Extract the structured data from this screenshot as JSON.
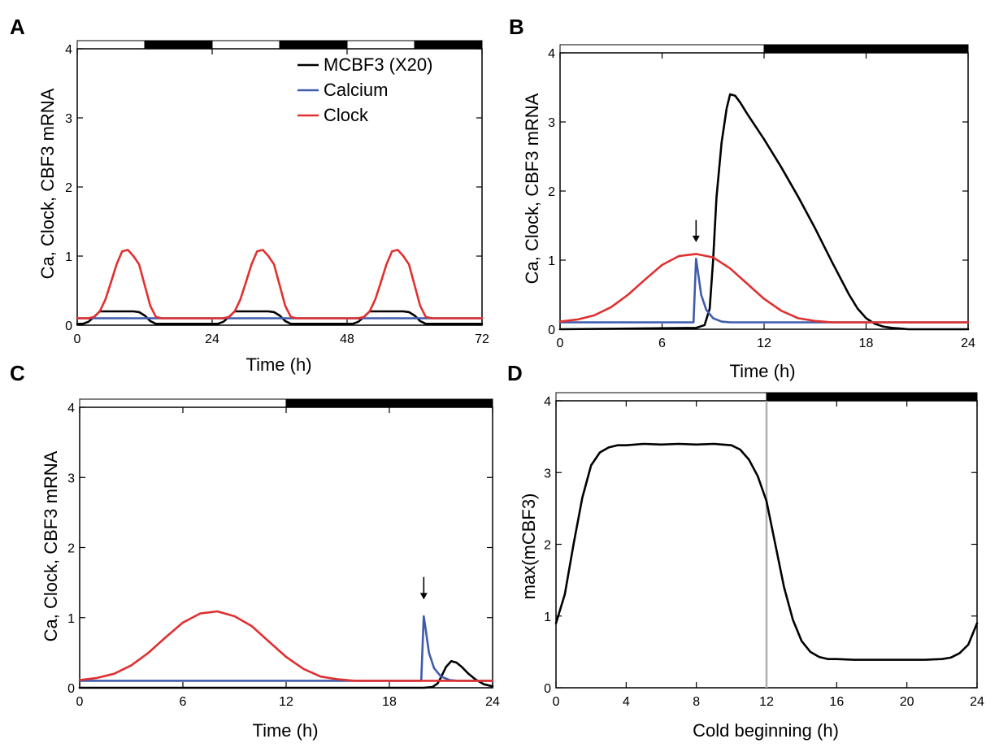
{
  "chart_data": [
    {
      "panel": "A",
      "type": "line",
      "xlabel": "Time (h)",
      "ylabel": "Ca, Clock, CBF3 mRNA",
      "xlim": [
        0,
        72
      ],
      "ylim": [
        0,
        4
      ],
      "xticks": [
        0,
        24,
        48,
        72
      ],
      "yticks": [
        0,
        1,
        2,
        3,
        4
      ],
      "light_dark_bar": [
        {
          "start": 0,
          "end": 12,
          "state": "light"
        },
        {
          "start": 12,
          "end": 24,
          "state": "dark"
        },
        {
          "start": 24,
          "end": 36,
          "state": "light"
        },
        {
          "start": 36,
          "end": 48,
          "state": "dark"
        },
        {
          "start": 48,
          "end": 60,
          "state": "light"
        },
        {
          "start": 60,
          "end": 72,
          "state": "dark"
        }
      ],
      "legend": {
        "placement": "top-right",
        "entries": [
          {
            "label": "MCBF3 (X20)",
            "color": "#000000"
          },
          {
            "label": "Calcium",
            "color": "#3f5bab"
          },
          {
            "label": "Clock",
            "color": "#e03030"
          }
        ]
      },
      "series": [
        {
          "name": "MCBF3 (X20)",
          "color": "#000000",
          "x": [
            0,
            1,
            2,
            3,
            4,
            10,
            11,
            12,
            13,
            14,
            23,
            24,
            25,
            26,
            27,
            28,
            34,
            35,
            36,
            37,
            38,
            47,
            48,
            49,
            50,
            51,
            52,
            58,
            59,
            60,
            61,
            62,
            72
          ],
          "y": [
            0.02,
            0.02,
            0.05,
            0.12,
            0.2,
            0.2,
            0.19,
            0.14,
            0.06,
            0.02,
            0.02,
            0.02,
            0.02,
            0.05,
            0.12,
            0.2,
            0.2,
            0.19,
            0.14,
            0.06,
            0.02,
            0.02,
            0.02,
            0.02,
            0.05,
            0.12,
            0.2,
            0.2,
            0.19,
            0.14,
            0.06,
            0.02,
            0.02
          ]
        },
        {
          "name": "Calcium",
          "color": "#3f5bab",
          "x": [
            0,
            72
          ],
          "y": [
            0.1,
            0.1
          ]
        },
        {
          "name": "Clock",
          "color": "#e03030",
          "x": [
            0,
            2,
            3,
            4,
            5,
            6,
            7,
            8,
            9,
            10,
            11,
            12,
            13,
            14,
            15,
            26,
            27,
            28,
            29,
            30,
            31,
            32,
            33,
            34,
            35,
            36,
            37,
            38,
            39,
            50,
            51,
            52,
            53,
            54,
            55,
            56,
            57,
            58,
            59,
            60,
            61,
            62,
            63,
            72
          ],
          "y": [
            0.1,
            0.1,
            0.12,
            0.2,
            0.37,
            0.62,
            0.88,
            1.07,
            1.09,
            1.0,
            0.88,
            0.58,
            0.28,
            0.12,
            0.1,
            0.1,
            0.12,
            0.2,
            0.37,
            0.62,
            0.88,
            1.07,
            1.09,
            1.0,
            0.88,
            0.58,
            0.28,
            0.12,
            0.1,
            0.1,
            0.12,
            0.2,
            0.37,
            0.62,
            0.88,
            1.07,
            1.09,
            1.0,
            0.88,
            0.58,
            0.28,
            0.12,
            0.1,
            0.1
          ]
        }
      ]
    },
    {
      "panel": "B",
      "type": "line",
      "xlabel": "Time (h)",
      "ylabel": "Ca, Clock, CBF3 mRNA",
      "xlim": [
        0,
        24
      ],
      "ylim": [
        0,
        4
      ],
      "xticks": [
        0,
        6,
        12,
        18,
        24
      ],
      "yticks": [
        0,
        1,
        2,
        3,
        4
      ],
      "light_dark_bar": [
        {
          "start": 0,
          "end": 12,
          "state": "light"
        },
        {
          "start": 12,
          "end": 24,
          "state": "dark"
        }
      ],
      "annotations": [
        {
          "type": "arrow-down",
          "x": 8,
          "y": 1.2
        }
      ],
      "series": [
        {
          "name": "MCBF3 (X20)",
          "color": "#000000",
          "x": [
            0,
            8,
            8.5,
            8.8,
            9,
            9.2,
            9.5,
            9.8,
            10,
            10.3,
            10.6,
            11,
            12,
            13,
            14,
            15,
            16,
            17,
            17.5,
            18,
            18.5,
            19,
            19.5,
            20,
            20.5,
            24
          ],
          "y": [
            0,
            0.02,
            0.06,
            0.3,
            1.0,
            1.9,
            2.7,
            3.2,
            3.4,
            3.38,
            3.28,
            3.12,
            2.75,
            2.35,
            1.92,
            1.46,
            0.97,
            0.5,
            0.3,
            0.16,
            0.08,
            0.04,
            0.02,
            0.01,
            0,
            0
          ]
        },
        {
          "name": "Calcium",
          "color": "#3f5bab",
          "x": [
            0,
            7.85,
            8,
            8.1,
            8.3,
            8.6,
            9,
            9.5,
            10,
            24
          ],
          "y": [
            0.1,
            0.1,
            1.02,
            0.85,
            0.5,
            0.28,
            0.16,
            0.11,
            0.1,
            0.1
          ]
        },
        {
          "name": "Clock",
          "color": "#e03030",
          "x": [
            0,
            1,
            2,
            3,
            4,
            5,
            6,
            7,
            8,
            9,
            10,
            11,
            12,
            13,
            14,
            15,
            16,
            17,
            24
          ],
          "y": [
            0.11,
            0.14,
            0.2,
            0.32,
            0.5,
            0.72,
            0.93,
            1.06,
            1.09,
            1.04,
            0.88,
            0.66,
            0.44,
            0.27,
            0.16,
            0.12,
            0.1,
            0.1,
            0.1
          ]
        }
      ]
    },
    {
      "panel": "C",
      "type": "line",
      "xlabel": "Time (h)",
      "ylabel": "Ca, Clock, CBF3 mRNA",
      "xlim": [
        0,
        24
      ],
      "ylim": [
        0,
        4
      ],
      "xticks": [
        0,
        6,
        12,
        18,
        24
      ],
      "yticks": [
        0,
        1,
        2,
        3,
        4
      ],
      "light_dark_bar": [
        {
          "start": 0,
          "end": 12,
          "state": "light"
        },
        {
          "start": 12,
          "end": 24,
          "state": "dark"
        }
      ],
      "annotations": [
        {
          "type": "arrow-down",
          "x": 20,
          "y": 1.2
        }
      ],
      "series": [
        {
          "name": "MCBF3 (X20)",
          "color": "#000000",
          "x": [
            0,
            20,
            20.5,
            20.8,
            21,
            21.3,
            21.6,
            21.9,
            22.2,
            22.6,
            23,
            23.5,
            24
          ],
          "y": [
            0,
            0,
            0.01,
            0.06,
            0.15,
            0.3,
            0.38,
            0.36,
            0.3,
            0.2,
            0.12,
            0.05,
            0.02
          ]
        },
        {
          "name": "Calcium",
          "color": "#3f5bab",
          "x": [
            0,
            19.85,
            20,
            20.1,
            20.3,
            20.6,
            21,
            21.5,
            22,
            24
          ],
          "y": [
            0.1,
            0.1,
            1.02,
            0.85,
            0.5,
            0.28,
            0.16,
            0.11,
            0.1,
            0.1
          ]
        },
        {
          "name": "Clock",
          "color": "#e03030",
          "x": [
            0,
            1,
            2,
            3,
            4,
            5,
            6,
            7,
            8,
            9,
            10,
            11,
            12,
            13,
            14,
            15,
            16,
            17,
            24
          ],
          "y": [
            0.11,
            0.14,
            0.2,
            0.32,
            0.5,
            0.72,
            0.93,
            1.06,
            1.09,
            1.02,
            0.88,
            0.66,
            0.44,
            0.27,
            0.16,
            0.12,
            0.1,
            0.1,
            0.1
          ]
        }
      ]
    },
    {
      "panel": "D",
      "type": "line",
      "xlabel": "Cold beginning (h)",
      "ylabel": "max(mCBF3)",
      "xlim": [
        0,
        24
      ],
      "ylim": [
        0,
        4
      ],
      "xticks": [
        0,
        4,
        8,
        12,
        16,
        20,
        24
      ],
      "yticks": [
        0,
        1,
        2,
        3,
        4
      ],
      "light_dark_bar": [
        {
          "start": 0,
          "end": 12,
          "state": "light"
        },
        {
          "start": 12,
          "end": 24,
          "state": "dark"
        }
      ],
      "vline": {
        "x": 12,
        "color": "#b0b0b0"
      },
      "series": [
        {
          "name": "max(mCBF3)",
          "color": "#000000",
          "x": [
            0,
            0.5,
            1,
            1.5,
            2,
            2.5,
            3,
            3.5,
            4,
            5,
            6,
            7,
            8,
            9,
            10,
            10.5,
            11,
            11.5,
            12,
            12.5,
            13,
            13.5,
            14,
            14.5,
            15,
            15.5,
            16,
            17,
            18,
            19,
            20,
            21,
            22,
            22.5,
            23,
            23.5,
            24
          ],
          "y": [
            0.9,
            1.3,
            2.0,
            2.65,
            3.1,
            3.28,
            3.35,
            3.38,
            3.38,
            3.4,
            3.39,
            3.4,
            3.39,
            3.4,
            3.38,
            3.32,
            3.18,
            2.95,
            2.6,
            2.0,
            1.4,
            0.95,
            0.65,
            0.5,
            0.43,
            0.4,
            0.4,
            0.39,
            0.39,
            0.39,
            0.39,
            0.39,
            0.4,
            0.42,
            0.48,
            0.6,
            0.9
          ]
        }
      ]
    }
  ]
}
